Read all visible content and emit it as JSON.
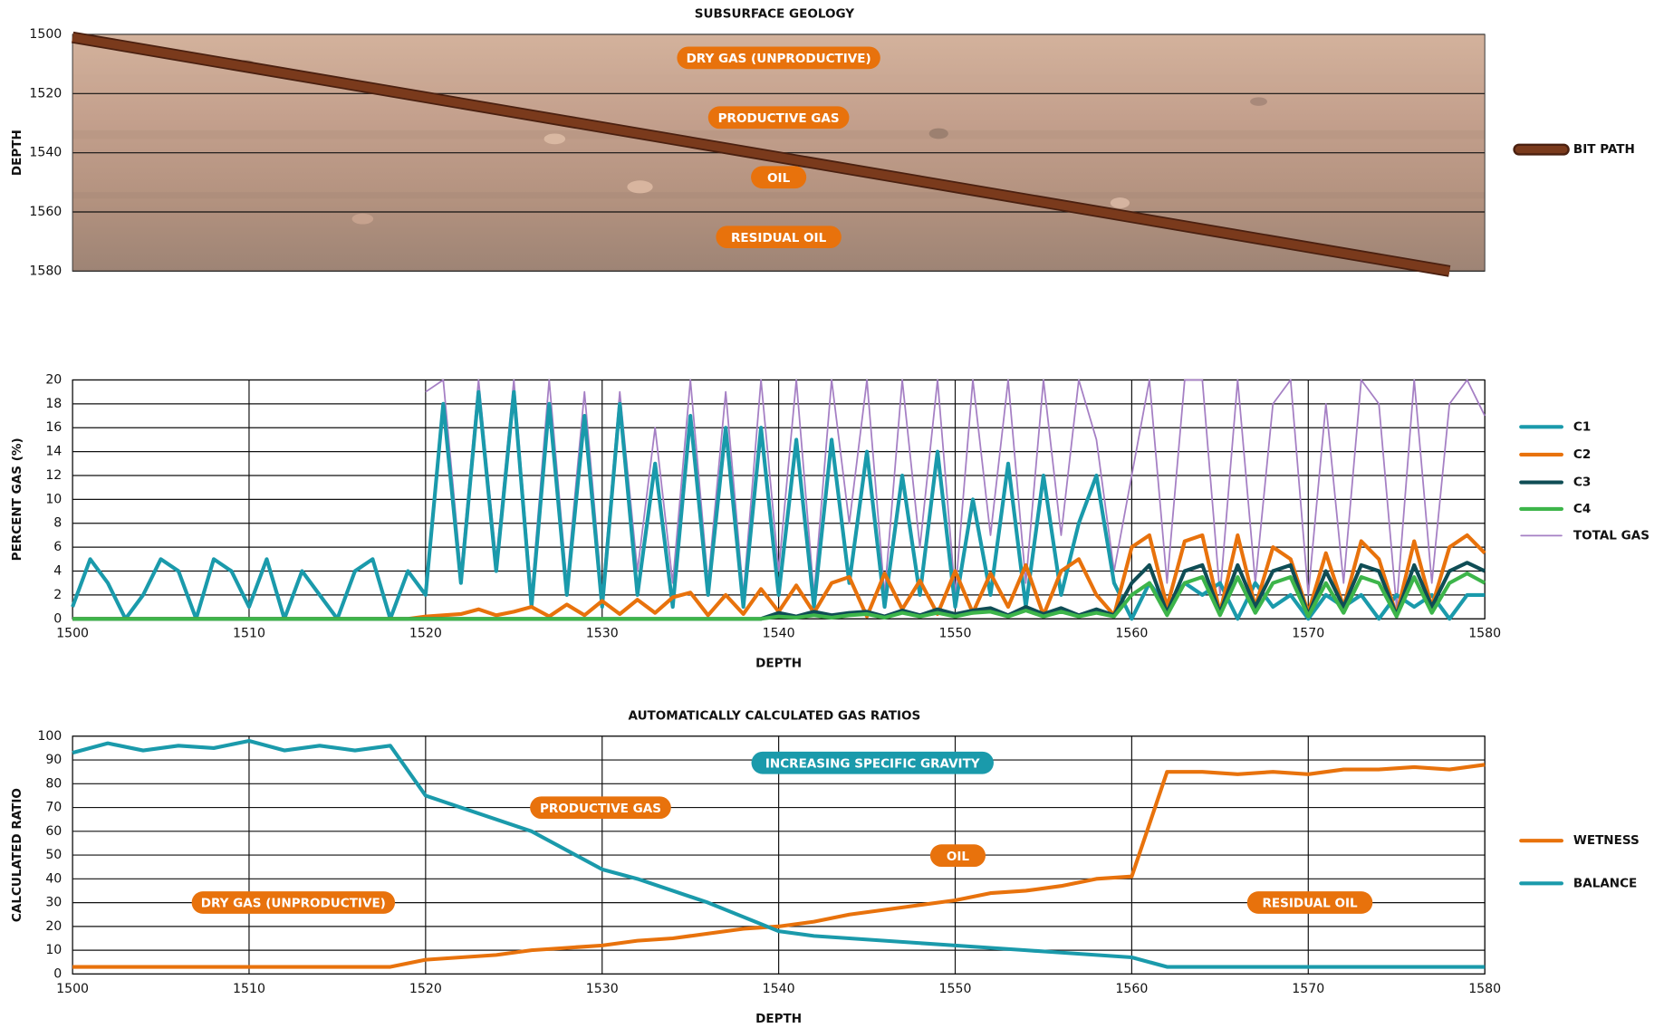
{
  "chart_data": [
    {
      "type": "line",
      "title": "SUBSURFACE GEOLOGY",
      "ylabel": "DEPTH",
      "y_inverted": true,
      "xlim": [
        1500,
        1580
      ],
      "ylim": [
        1500,
        1580
      ],
      "yticks": [
        1500,
        1520,
        1540,
        1560,
        1580
      ],
      "grid": true,
      "x": [
        1500,
        1578
      ],
      "series": [
        {
          "name": "BIT PATH",
          "color": "#7a3a1c",
          "values": [
            1501,
            1580
          ]
        }
      ],
      "annotations": [
        {
          "text": "DRY GAS (UNPRODUCTIVE)",
          "color": "#e8720c"
        },
        {
          "text": "PRODUCTIVE GAS",
          "color": "#e8720c"
        },
        {
          "text": "OIL",
          "color": "#e8720c"
        },
        {
          "text": "RESIDUAL OIL",
          "color": "#e8720c"
        }
      ]
    },
    {
      "type": "line",
      "xlabel": "DEPTH",
      "ylabel": "PERCENT GAS (%)",
      "xlim": [
        1500,
        1580
      ],
      "ylim": [
        0,
        20
      ],
      "xticks": [
        1500,
        1510,
        1520,
        1530,
        1540,
        1550,
        1560,
        1570,
        1580
      ],
      "yticks": [
        0,
        2,
        4,
        6,
        8,
        10,
        12,
        14,
        16,
        18,
        20
      ],
      "grid": true,
      "x": [
        1500,
        1501,
        1502,
        1503,
        1504,
        1505,
        1506,
        1507,
        1508,
        1509,
        1510,
        1511,
        1512,
        1513,
        1514,
        1515,
        1516,
        1517,
        1518,
        1519,
        1520,
        1521,
        1522,
        1523,
        1524,
        1525,
        1526,
        1527,
        1528,
        1529,
        1530,
        1531,
        1532,
        1533,
        1534,
        1535,
        1536,
        1537,
        1538,
        1539,
        1540,
        1541,
        1542,
        1543,
        1544,
        1545,
        1546,
        1547,
        1548,
        1549,
        1550,
        1551,
        1552,
        1553,
        1554,
        1555,
        1556,
        1557,
        1558,
        1559,
        1560,
        1561,
        1562,
        1563,
        1564,
        1565,
        1566,
        1567,
        1568,
        1569,
        1570,
        1571,
        1572,
        1573,
        1574,
        1575,
        1576,
        1577,
        1578,
        1579,
        1580
      ],
      "series": [
        {
          "name": "C1",
          "color": "#1a9aab",
          "width": 3.5,
          "values": [
            1,
            5,
            3,
            0,
            2,
            5,
            4,
            0,
            5,
            4,
            1,
            5,
            0,
            4,
            2,
            0,
            4,
            5,
            0,
            4,
            2,
            18,
            3,
            19,
            4,
            19,
            1,
            18,
            2,
            17,
            1,
            18,
            2,
            13,
            1,
            17,
            2,
            16,
            1,
            16,
            2,
            15,
            1,
            15,
            3,
            14,
            1,
            12,
            2,
            14,
            1,
            10,
            2,
            13,
            1,
            12,
            2,
            8,
            12,
            3,
            0,
            3,
            1,
            3,
            2,
            3,
            0,
            3,
            1,
            2,
            0,
            2,
            1,
            2,
            0,
            2,
            1,
            2,
            0,
            2,
            2
          ]
        },
        {
          "name": "C2",
          "color": "#e8720c",
          "width": 3.5,
          "values": [
            0,
            0,
            0,
            0,
            0,
            0,
            0,
            0,
            0,
            0,
            0,
            0,
            0,
            0,
            0,
            0,
            0,
            0,
            0,
            0,
            0.2,
            0.3,
            0.4,
            0.8,
            0.3,
            0.6,
            1,
            0.2,
            1.2,
            0.3,
            1.5,
            0.4,
            1.6,
            0.5,
            1.8,
            2.2,
            0.3,
            2,
            0.4,
            2.5,
            0.6,
            2.8,
            0.5,
            3,
            3.5,
            0.2,
            3.8,
            0.8,
            3.2,
            0.4,
            4,
            0.5,
            3.8,
            1,
            4.5,
            0.3,
            4,
            5,
            2,
            0.3,
            6,
            7,
            1,
            6.5,
            7,
            0.5,
            7,
            1,
            6,
            5,
            0.5,
            5.5,
            1,
            6.5,
            5,
            0.3,
            6.5,
            1,
            6,
            7,
            5.5
          ]
        },
        {
          "name": "C3",
          "color": "#0f4d55",
          "width": 3.5,
          "values": [
            0,
            0,
            0,
            0,
            0,
            0,
            0,
            0,
            0,
            0,
            0,
            0,
            0,
            0,
            0,
            0,
            0,
            0,
            0,
            0,
            0,
            0,
            0,
            0,
            0,
            0,
            0,
            0,
            0,
            0,
            0,
            0,
            0,
            0,
            0,
            0,
            0,
            0,
            0,
            0,
            0.5,
            0.2,
            0.6,
            0.3,
            0.5,
            0.6,
            0.2,
            0.7,
            0.3,
            0.8,
            0.4,
            0.7,
            0.9,
            0.3,
            1,
            0.4,
            0.9,
            0.3,
            0.8,
            0.3,
            3,
            4.5,
            0.5,
            4,
            4.5,
            0.5,
            4.5,
            1,
            4,
            4.5,
            0.3,
            4,
            1,
            4.5,
            4,
            0.3,
            4.5,
            1,
            4,
            4.7,
            4
          ]
        },
        {
          "name": "C4",
          "color": "#3db54a",
          "width": 3.5,
          "values": [
            0,
            0,
            0,
            0,
            0,
            0,
            0,
            0,
            0,
            0,
            0,
            0,
            0,
            0,
            0,
            0,
            0,
            0,
            0,
            0,
            0,
            0,
            0,
            0,
            0,
            0,
            0,
            0,
            0,
            0,
            0,
            0,
            0,
            0,
            0,
            0,
            0,
            0,
            0,
            0,
            0.2,
            0.1,
            0.3,
            0.1,
            0.3,
            0.4,
            0.1,
            0.5,
            0.2,
            0.5,
            0.2,
            0.5,
            0.6,
            0.2,
            0.7,
            0.2,
            0.6,
            0.2,
            0.5,
            0.2,
            2,
            3,
            0.3,
            3,
            3.5,
            0.3,
            3.5,
            0.5,
            3,
            3.5,
            0.2,
            3,
            0.5,
            3.5,
            3,
            0.2,
            3.5,
            0.5,
            3,
            3.8,
            3
          ]
        },
        {
          "name": "TOTAL GAS",
          "color": "#a57fc4",
          "width": 1.5,
          "values": [
            null,
            null,
            null,
            null,
            null,
            null,
            null,
            null,
            null,
            null,
            null,
            null,
            null,
            null,
            null,
            null,
            null,
            null,
            null,
            null,
            19,
            20,
            4,
            20,
            5,
            20,
            2,
            20,
            3,
            19,
            2,
            19,
            4,
            16,
            3,
            20,
            3,
            19,
            2,
            20,
            4,
            20,
            2,
            20,
            8,
            20,
            2,
            20,
            6,
            20,
            2,
            20,
            7,
            20,
            3,
            20,
            7,
            20,
            15,
            4,
            12,
            20,
            3,
            20,
            20,
            2,
            20,
            3,
            18,
            20,
            2,
            18,
            3,
            20,
            18,
            1,
            20,
            3,
            18,
            20,
            17
          ]
        }
      ]
    },
    {
      "type": "line",
      "title": "AUTOMATICALLY CALCULATED GAS RATIOS",
      "xlabel": "DEPTH",
      "ylabel": "CALCULATED RATIO",
      "xlim": [
        1500,
        1580
      ],
      "ylim": [
        0,
        100
      ],
      "xticks": [
        1500,
        1510,
        1520,
        1530,
        1540,
        1550,
        1560,
        1570,
        1580
      ],
      "yticks": [
        0,
        10,
        20,
        30,
        40,
        50,
        60,
        70,
        80,
        90,
        100
      ],
      "grid": true,
      "x": [
        1500,
        1502,
        1504,
        1506,
        1508,
        1510,
        1512,
        1514,
        1516,
        1518,
        1520,
        1522,
        1524,
        1526,
        1528,
        1530,
        1532,
        1534,
        1536,
        1538,
        1540,
        1542,
        1544,
        1546,
        1548,
        1550,
        1552,
        1554,
        1556,
        1558,
        1560,
        1562,
        1564,
        1566,
        1568,
        1570,
        1572,
        1574,
        1576,
        1578,
        1580
      ],
      "series": [
        {
          "name": "WETNESS",
          "color": "#e8720c",
          "width": 3.5,
          "values": [
            3,
            3,
            3,
            3,
            3,
            3,
            3,
            3,
            3,
            3,
            6,
            7,
            8,
            10,
            11,
            12,
            14,
            15,
            17,
            19,
            20,
            22,
            25,
            27,
            29,
            31,
            34,
            35,
            37,
            40,
            41,
            85,
            85,
            84,
            85,
            84,
            86,
            86,
            87,
            86,
            88
          ]
        },
        {
          "name": "BALANCE",
          "color": "#1a9aab",
          "width": 3.5,
          "values": [
            93,
            97,
            94,
            96,
            95,
            98,
            94,
            96,
            94,
            96,
            75,
            70,
            65,
            60,
            52,
            44,
            40,
            35,
            30,
            24,
            18,
            16,
            15,
            14,
            13,
            12,
            11,
            10,
            9,
            8,
            7,
            3,
            3,
            3,
            3,
            3,
            3,
            3,
            3,
            3,
            3
          ]
        }
      ],
      "annotations": [
        {
          "text": "INCREASING SPECIFIC GRAVITY",
          "color": "#1a9aab"
        },
        {
          "text": "PRODUCTIVE GAS",
          "color": "#e8720c"
        },
        {
          "text": "OIL",
          "color": "#e8720c"
        },
        {
          "text": "DRY GAS (UNPRODUCTIVE)",
          "color": "#e8720c"
        },
        {
          "text": "RESIDUAL OIL",
          "color": "#e8720c"
        }
      ]
    }
  ]
}
